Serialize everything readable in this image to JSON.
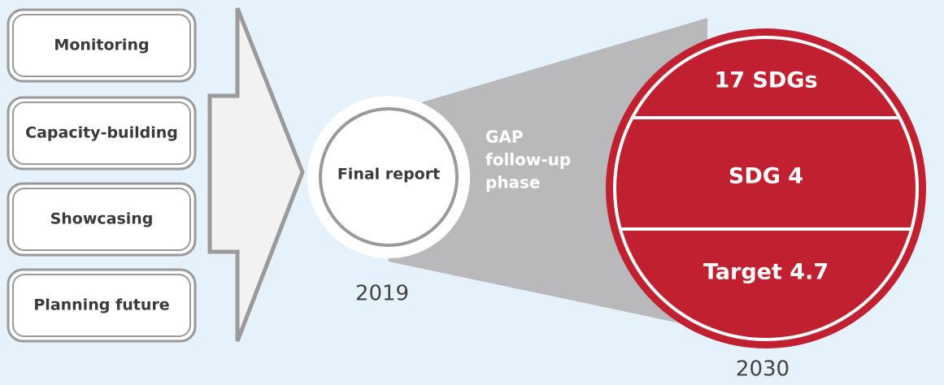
{
  "steps": [
    "Monitoring",
    "Capacity-building",
    "Showcasing",
    "Planning future"
  ],
  "final_report": {
    "label": "Final report",
    "year": "2019"
  },
  "gap_label": [
    "GAP",
    "follow-up",
    "phase"
  ],
  "goals": {
    "levels": [
      "17 SDGs",
      "SDG 4",
      "Target 4.7"
    ],
    "year": "2030"
  }
}
